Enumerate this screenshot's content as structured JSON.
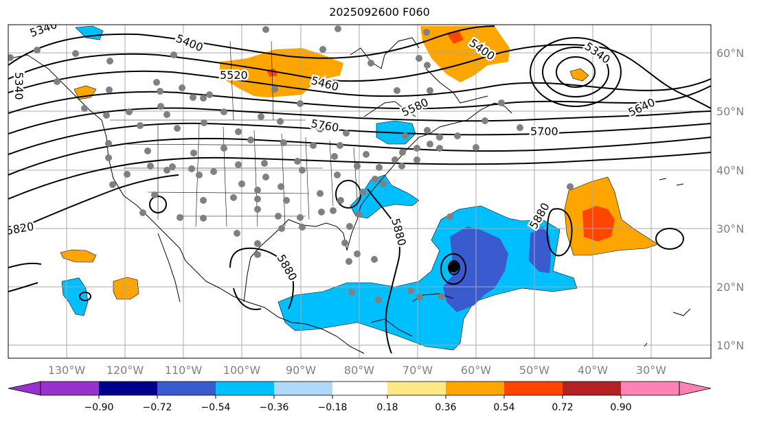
{
  "title": "2025092600 F060",
  "lon_labels": [
    "130°W",
    "120°W",
    "110°W",
    "100°W",
    "90°W",
    "80°W",
    "70°W",
    "60°W",
    "50°W",
    "40°W",
    "30°W"
  ],
  "lat_labels": [
    "60°N",
    "50°N",
    "40°N",
    "30°N",
    "20°N",
    "10°N"
  ],
  "contour_labels": [
    "5400",
    "5340",
    "5340",
    "5520",
    "5460",
    "5400",
    "5340",
    "5640",
    "5580",
    "5760",
    "5700",
    "5820",
    "5880",
    "5880",
    "5880"
  ],
  "colorbar": {
    "ticks": [
      "−0.90",
      "−0.72",
      "−0.54",
      "−0.36",
      "−0.18",
      "0.18",
      "0.36",
      "0.54",
      "0.72",
      "0.90"
    ],
    "under_color": "#9932cc",
    "over_color": "#ff82b4",
    "colors": [
      "#9932cc",
      "#00008b",
      "#3a5bd0",
      "#00bfff",
      "#add8f7",
      "#ffffff",
      "#ffe887",
      "#ffa500",
      "#ff4500",
      "#b22222",
      "#ff82b4"
    ]
  },
  "fill_colors": {
    "orange": "#ffa500",
    "red": "#ff4500",
    "cyan": "#00bfff",
    "blue": "#3a5bd0"
  },
  "station_color": "#808080"
}
